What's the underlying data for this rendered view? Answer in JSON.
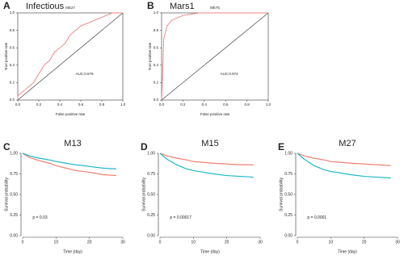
{
  "chart_data": [
    {
      "type": "line",
      "panel": "A",
      "title": "Infectious",
      "subtitle": "ME27",
      "xlabel": "False positive rate",
      "ylabel": "True positive rate",
      "annotation": "AUC:0.679",
      "xlim": [
        0,
        1
      ],
      "ylim": [
        0,
        1
      ],
      "xticks": [
        {
          "value": 0,
          "label": "0.0"
        },
        0.2,
        0.4,
        0.6,
        0.8,
        {
          "value": 1,
          "label": "1.0"
        }
      ],
      "yticks": [
        {
          "value": 0,
          "label": "0.0"
        },
        0.2,
        0.4,
        0.6,
        0.8,
        {
          "value": 1,
          "label": "1.0"
        }
      ],
      "series": [
        {
          "color": "#f08080",
          "x": [
            0,
            0,
            0.05,
            0.1,
            0.15,
            0.2,
            0.25,
            0.3,
            0.35,
            0.4,
            0.45,
            0.5,
            0.55,
            0.6,
            0.7,
            0.8,
            0.9,
            1
          ],
          "values": [
            0,
            0.05,
            0.1,
            0.15,
            0.2,
            0.3,
            0.4,
            0.45,
            0.55,
            0.6,
            0.65,
            0.75,
            0.8,
            0.85,
            0.9,
            0.95,
            1,
            1
          ]
        }
      ]
    },
    {
      "type": "line",
      "panel": "B",
      "title": "Mars1",
      "subtitle": "ME75",
      "xlabel": "False positive rate",
      "ylabel": "True positive rate",
      "annotation": "AUC:0.974",
      "xlim": [
        0,
        1
      ],
      "ylim": [
        0,
        1
      ],
      "xticks": [
        {
          "value": 0,
          "label": "0.0"
        },
        0.2,
        0.4,
        0.6,
        0.8,
        {
          "value": 1,
          "label": "1.0"
        }
      ],
      "yticks": [
        {
          "value": 0,
          "label": "0.0"
        },
        0.2,
        0.4,
        0.6,
        0.8,
        {
          "value": 1,
          "label": "1.0"
        }
      ],
      "series": [
        {
          "color": "#f08080",
          "x": [
            0,
            0.01,
            0.02,
            0.05,
            0.1,
            0.2,
            0.35,
            1
          ],
          "values": [
            0,
            0.3,
            0.7,
            0.85,
            0.92,
            0.97,
            1,
            1
          ]
        }
      ]
    },
    {
      "type": "survival",
      "panel": "C",
      "title": "M13",
      "xlabel": "Time  (day)",
      "ylabel": "Survival probability",
      "annotation": "p = 0.03",
      "xlim": [
        0,
        30
      ],
      "ylim": [
        0,
        1
      ],
      "xticks": [
        0,
        10,
        20,
        30
      ],
      "yticks": [
        {
          "value": 0,
          "label": "0.00"
        },
        0.25,
        {
          "value": 0.5,
          "label": "0.50"
        },
        0.75,
        {
          "value": 1,
          "label": "1.00"
        }
      ],
      "x": [
        0,
        2,
        5,
        8,
        10,
        13,
        16,
        20,
        24,
        28
      ],
      "series": [
        {
          "color": "#f08070",
          "values": [
            1,
            0.95,
            0.91,
            0.88,
            0.85,
            0.82,
            0.79,
            0.77,
            0.74,
            0.73
          ]
        },
        {
          "color": "#20b8c8",
          "values": [
            1,
            0.97,
            0.94,
            0.92,
            0.9,
            0.88,
            0.86,
            0.84,
            0.82,
            0.81
          ]
        }
      ]
    },
    {
      "type": "survival",
      "panel": "D",
      "title": "M15",
      "xlabel": "Time  (day)",
      "ylabel": "Survival probability",
      "annotation": "p = 0.00017",
      "xlim": [
        0,
        30
      ],
      "ylim": [
        0,
        1
      ],
      "xticks": [
        0,
        10,
        20,
        30
      ],
      "yticks": [
        {
          "value": 0,
          "label": "0.00"
        },
        0.25,
        {
          "value": 0.5,
          "label": "0.50"
        },
        0.75,
        {
          "value": 1,
          "label": "1.00"
        }
      ],
      "x": [
        0,
        2,
        5,
        8,
        10,
        13,
        16,
        20,
        24,
        28
      ],
      "series": [
        {
          "color": "#f08070",
          "values": [
            1,
            0.97,
            0.94,
            0.92,
            0.9,
            0.89,
            0.88,
            0.87,
            0.86,
            0.86
          ]
        },
        {
          "color": "#20b8c8",
          "values": [
            1,
            0.93,
            0.86,
            0.81,
            0.79,
            0.77,
            0.75,
            0.73,
            0.72,
            0.71
          ]
        }
      ]
    },
    {
      "type": "survival",
      "panel": "E",
      "title": "M27",
      "xlabel": "Time  (day)",
      "ylabel": "Survival probability",
      "annotation": "p = 0.0001",
      "xlim": [
        0,
        30
      ],
      "ylim": [
        0,
        1
      ],
      "xticks": [
        0,
        10,
        20,
        30
      ],
      "yticks": [
        {
          "value": 0,
          "label": "0.00"
        },
        0.25,
        {
          "value": 0.5,
          "label": "0.50"
        },
        0.75,
        {
          "value": 1,
          "label": "1.00"
        }
      ],
      "x": [
        0,
        2,
        5,
        8,
        10,
        13,
        16,
        20,
        24,
        28
      ],
      "series": [
        {
          "color": "#f08070",
          "values": [
            1,
            0.97,
            0.94,
            0.92,
            0.9,
            0.89,
            0.88,
            0.87,
            0.86,
            0.85
          ]
        },
        {
          "color": "#20b8c8",
          "values": [
            1,
            0.93,
            0.85,
            0.8,
            0.78,
            0.76,
            0.74,
            0.72,
            0.71,
            0.7
          ]
        }
      ]
    }
  ]
}
